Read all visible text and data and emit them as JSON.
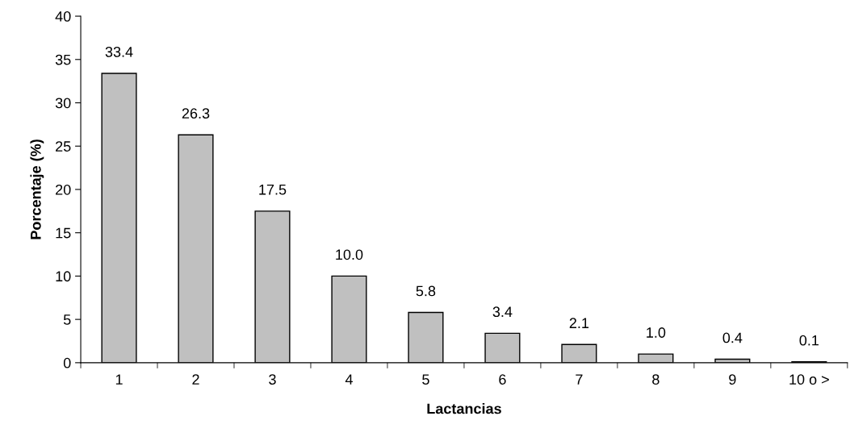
{
  "chart_data": {
    "type": "bar",
    "xlabel": "Lactancias",
    "ylabel": "Porcentaje (%)",
    "categories": [
      "1",
      "2",
      "3",
      "4",
      "5",
      "6",
      "7",
      "8",
      "9",
      "10 o >"
    ],
    "values": [
      33.4,
      26.3,
      17.5,
      10.0,
      5.8,
      3.4,
      2.1,
      1.0,
      0.4,
      0.1
    ],
    "value_labels": [
      "33.4",
      "26.3",
      "17.5",
      "10.0",
      "5.8",
      "3.4",
      "2.1",
      "1.0",
      "0.4",
      "0.1"
    ],
    "color": "#c0c0c0",
    "ylim": [
      0,
      40
    ],
    "yticks": [
      0,
      5,
      10,
      15,
      20,
      25,
      30,
      35,
      40
    ],
    "grid": false,
    "legend": false
  }
}
